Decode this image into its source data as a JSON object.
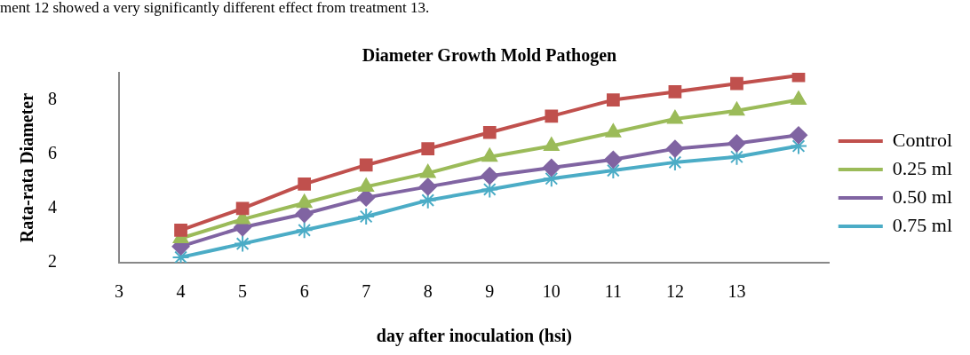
{
  "chart_data": {
    "type": "line",
    "title": "Diameter Growth Mold Pathogen",
    "xlabel": "day after inoculation (hsi)",
    "ylabel": "Rata-rata Diameter",
    "annotations": [
      "ment 12 showed a very significantly different effect from treatment 13."
    ],
    "x": [
      4,
      5,
      6,
      7,
      8,
      9,
      10,
      11,
      12,
      13,
      14
    ],
    "series": [
      {
        "name": "Control",
        "color": "#c0504d",
        "marker": "square",
        "values": [
          3.2,
          4.0,
          4.9,
          5.6,
          6.2,
          6.8,
          7.4,
          8.0,
          8.3,
          8.6,
          8.9
        ]
      },
      {
        "name": "0.25 ml",
        "color": "#9bbb59",
        "marker": "triangle",
        "values": [
          2.9,
          3.6,
          4.2,
          4.8,
          5.3,
          5.9,
          6.3,
          6.8,
          7.3,
          7.6,
          8.0
        ]
      },
      {
        "name": "0.50 ml",
        "color": "#8064a2",
        "marker": "diamond",
        "values": [
          2.6,
          3.3,
          3.8,
          4.4,
          4.8,
          5.2,
          5.5,
          5.8,
          6.2,
          6.4,
          6.7
        ]
      },
      {
        "name": "0.75 ml",
        "color": "#4bacc6",
        "marker": "cross",
        "values": [
          2.2,
          2.7,
          3.2,
          3.7,
          4.3,
          4.7,
          5.1,
          5.4,
          5.7,
          5.9,
          6.3
        ]
      }
    ],
    "xlim": [
      3,
      14.5
    ],
    "xticks": [
      3,
      4,
      5,
      6,
      7,
      8,
      9,
      10,
      11,
      12,
      13
    ],
    "ylim": [
      2,
      9
    ],
    "yticks": [
      2,
      4,
      6,
      8
    ],
    "grid": false,
    "legend": "right",
    "line_style": "solid"
  }
}
